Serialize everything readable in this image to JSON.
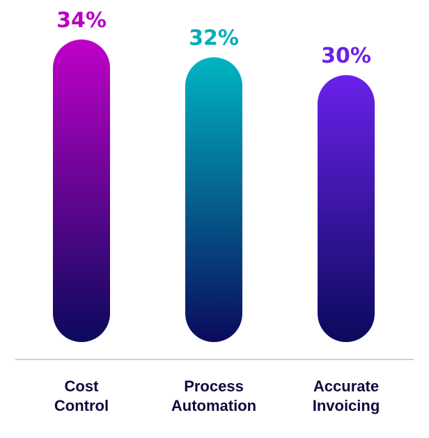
{
  "chart_data": {
    "type": "bar",
    "categories": [
      [
        "Cost",
        "Control"
      ],
      [
        "Process",
        "Automation"
      ],
      [
        "Accurate",
        "Invoicing"
      ]
    ],
    "values": [
      34,
      32,
      30
    ],
    "value_labels": [
      "34%",
      "32%",
      "30%"
    ],
    "unit": "%",
    "title": "",
    "xlabel": "",
    "ylabel": "",
    "grid": false,
    "colors": {
      "bar_tops": [
        "#bf00c8",
        "#00b5c2",
        "#6a21ea"
      ],
      "bar_bottom": "#0a0a5c",
      "label_colors": [
        "#b800c4",
        "#00adbb",
        "#6a21ea"
      ],
      "baseline": "#cfcfd6",
      "category_text": "#0e0c3a"
    }
  }
}
